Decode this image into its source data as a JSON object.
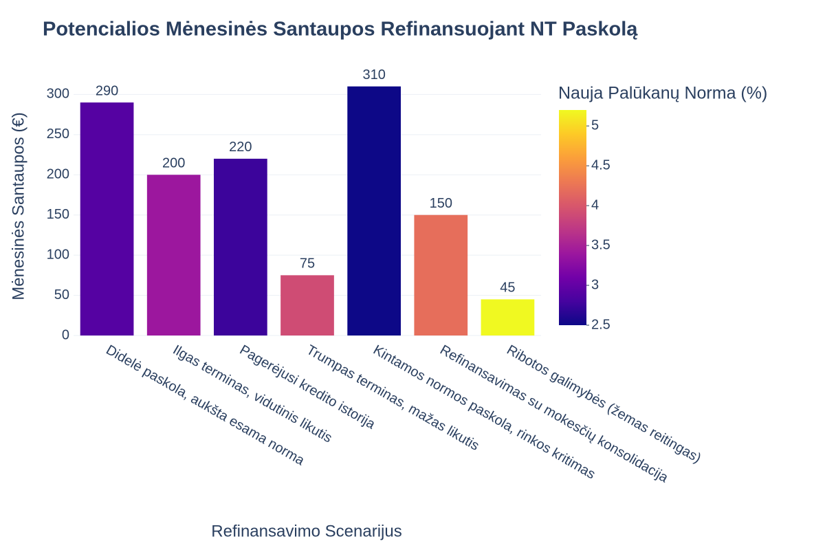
{
  "chart_data": {
    "type": "bar",
    "title": "Potencialios Mėnesinės Santaupos Refinansuojant NT Paskolą",
    "x_label": "Refinansavimo Scenarijus",
    "y_label": "Mėnesinės Santaupos (€)",
    "categories": [
      "Didelė paskola, aukšta esama norma",
      "Ilgas terminas, vidutinis likutis",
      "Pagerėjusi kredito istorija",
      "Trumpas terminas, mažas likutis",
      "Kintamos normos paskola, rinkos kritimas",
      "Refinansavimas su mokesčių konsolidacija",
      "Ribotos galimybės (žemas reitingas)"
    ],
    "values": [
      290,
      200,
      220,
      75,
      310,
      150,
      45
    ],
    "color_values": [
      2.9,
      3.4,
      2.75,
      3.9,
      2.5,
      4.2,
      5.2
    ],
    "ylim": [
      0,
      320
    ],
    "yticks": [
      0,
      50,
      100,
      150,
      200,
      250,
      300
    ],
    "grid": true,
    "colorbar": {
      "title": "Nauja Palūkanų Norma (%)",
      "lim": [
        2.5,
        5.2
      ],
      "ticks": [
        2.5,
        3,
        3.5,
        4,
        4.5,
        5
      ]
    }
  }
}
